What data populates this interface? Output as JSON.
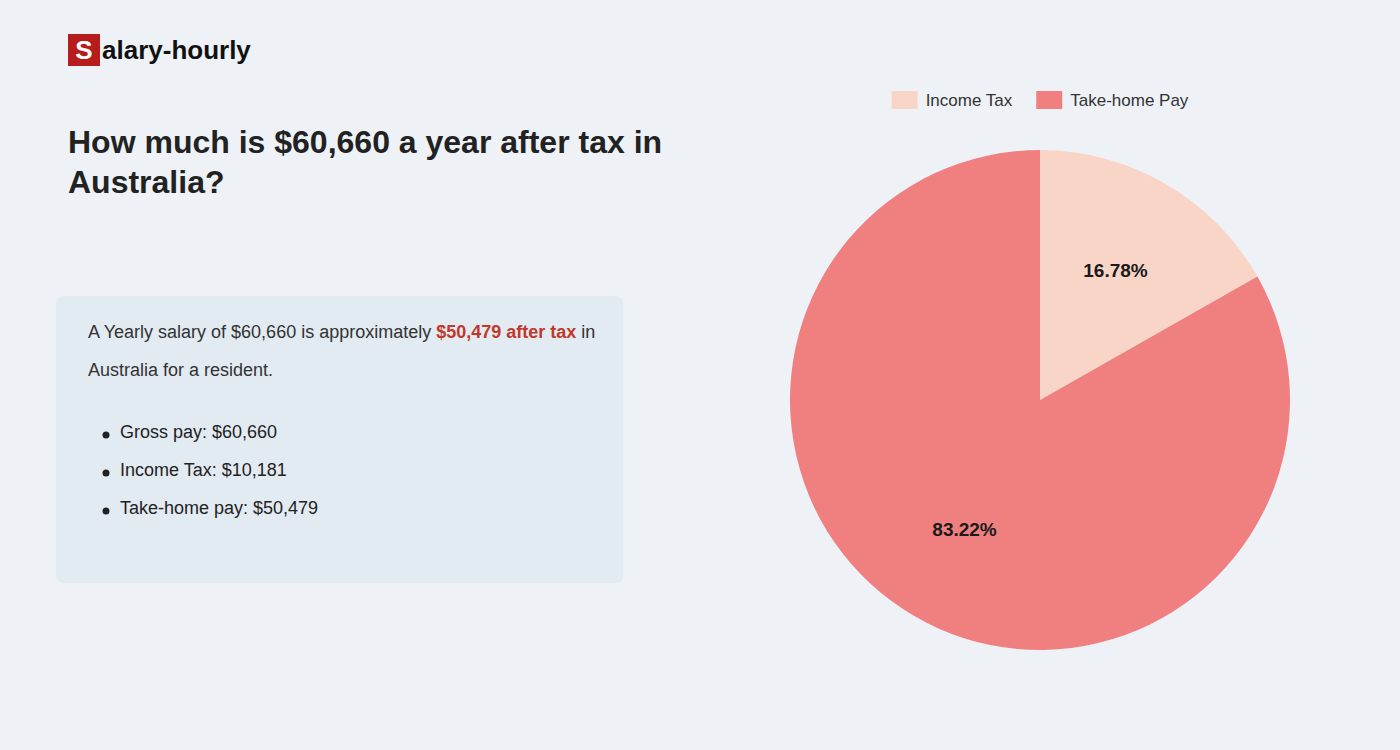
{
  "page": {
    "logo": [
      "S",
      "alary-hourly"
    ],
    "heading": [
      "How much is $60,660 a year after tax in",
      "Australia?"
    ],
    "body": [
      [
        "A Yearly salary of $60,660 is approximately ",
        "$50,479 after tax",
        " in"
      ],
      [
        "Australia for a resident."
      ]
    ],
    "bullets": [
      "Gross pay: $60,660",
      "Income Tax: $10,181",
      "Take-home pay: $50,479"
    ]
  },
  "chart_data": {
    "type": "pie",
    "categories": [
      "Income Tax",
      "Take-home Pay"
    ],
    "values": [
      16.78,
      83.22
    ],
    "value_labels": [
      "16.78%",
      "83.22%"
    ],
    "colors": [
      "#f9d5c8",
      "#f08080"
    ],
    "data_labels": true,
    "legend": "top"
  }
}
